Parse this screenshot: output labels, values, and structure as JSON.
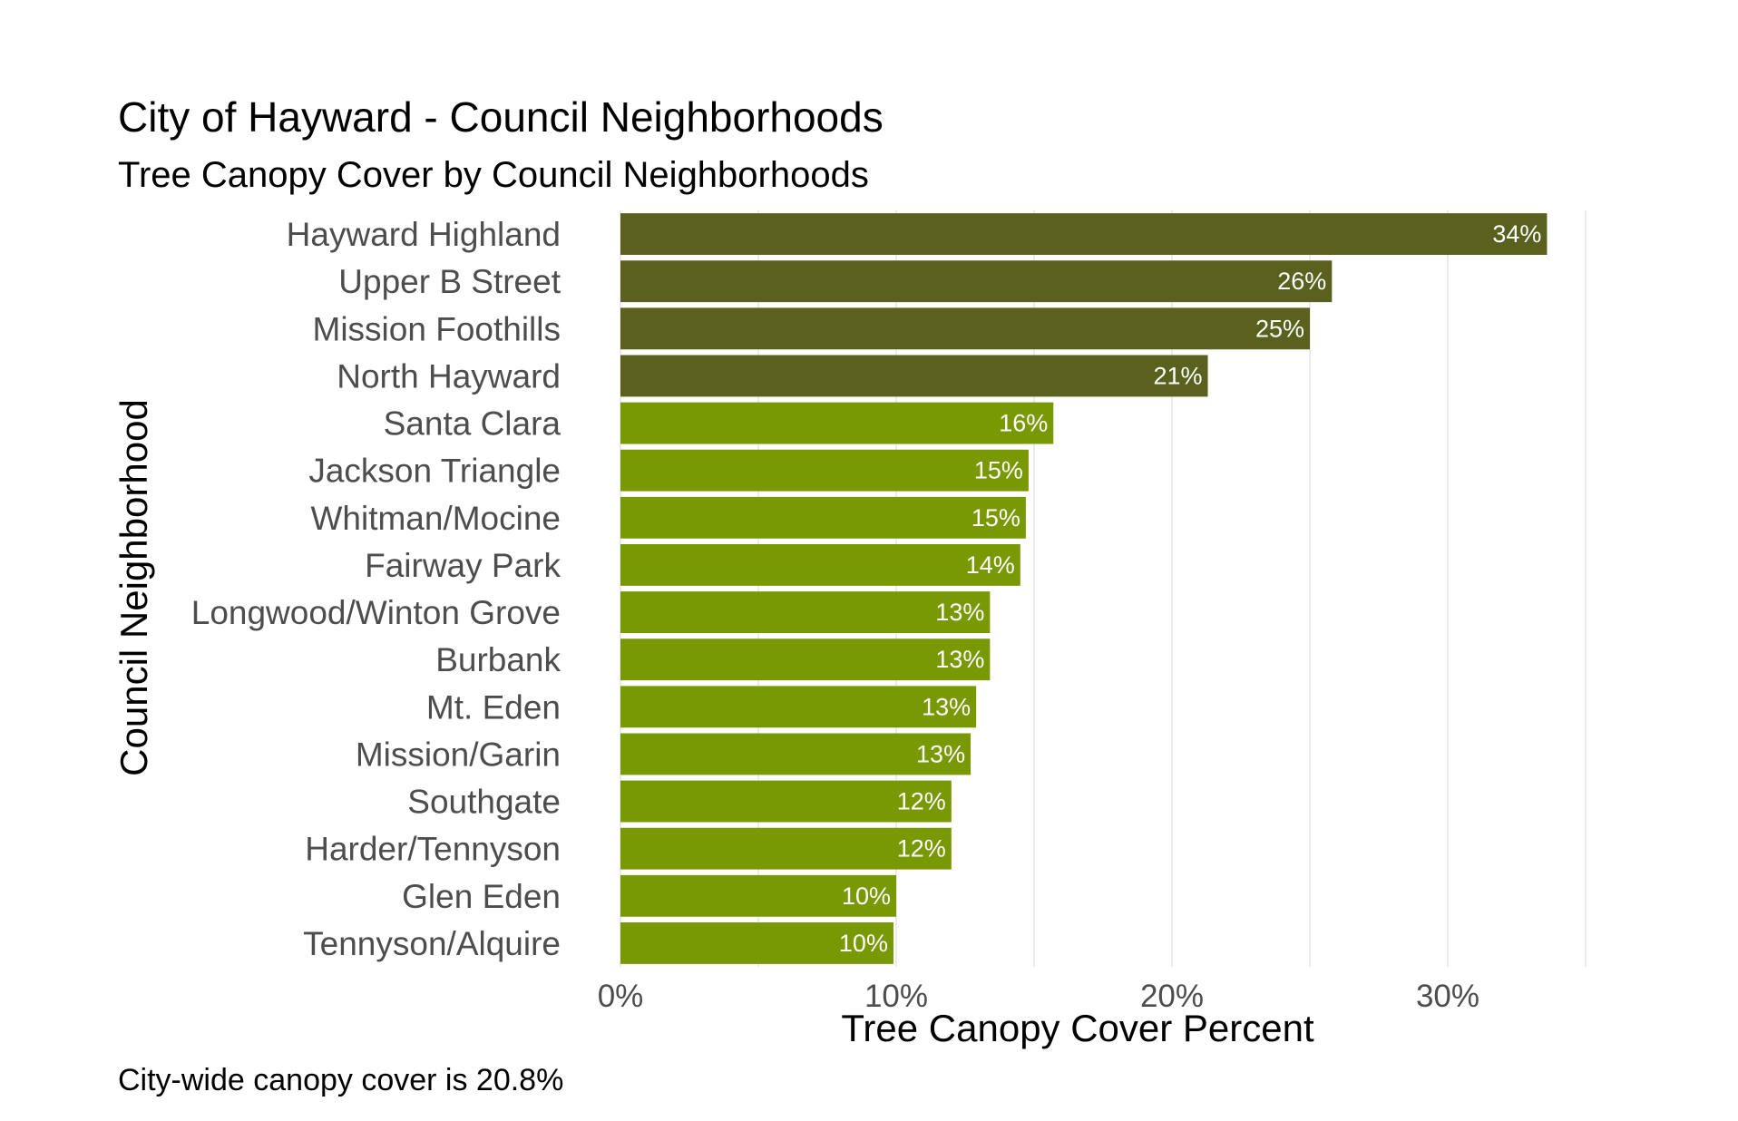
{
  "chart_data": {
    "type": "bar",
    "orientation": "horizontal",
    "title": "City of Hayward - Council Neighborhoods",
    "subtitle": "Tree Canopy Cover by Council Neighborhoods",
    "xlabel": "Tree Canopy Cover Percent",
    "ylabel": "Council Neighborhood",
    "caption": "City-wide canopy cover is 20.8%",
    "xlim": [
      0,
      35
    ],
    "x_ticks": [
      0,
      10,
      20,
      30
    ],
    "x_tick_labels": [
      "0%",
      "10%",
      "20%",
      "30%"
    ],
    "grid": true,
    "legend": "none",
    "categories": [
      "Hayward Highland",
      "Upper B Street",
      "Mission Foothills",
      "North Hayward",
      "Santa Clara",
      "Jackson Triangle",
      "Whitman/Mocine",
      "Fairway Park",
      "Longwood/Winton Grove",
      "Burbank",
      "Mt. Eden",
      "Mission/Garin",
      "Southgate",
      "Harder/Tennyson",
      "Glen Eden",
      "Tennyson/Alquire"
    ],
    "values": [
      33.6,
      25.8,
      25.0,
      21.3,
      15.7,
      14.8,
      14.7,
      14.5,
      13.4,
      13.4,
      12.9,
      12.7,
      12.0,
      12.0,
      10.0,
      9.9
    ],
    "labels": [
      "34%",
      "26%",
      "25%",
      "21%",
      "16%",
      "15%",
      "15%",
      "14%",
      "13%",
      "13%",
      "13%",
      "13%",
      "12%",
      "12%",
      "10%",
      "10%"
    ],
    "colors": {
      "above_citywide": "#5a601e",
      "below_citywide": "#789904"
    },
    "reference_value": 20.8
  }
}
